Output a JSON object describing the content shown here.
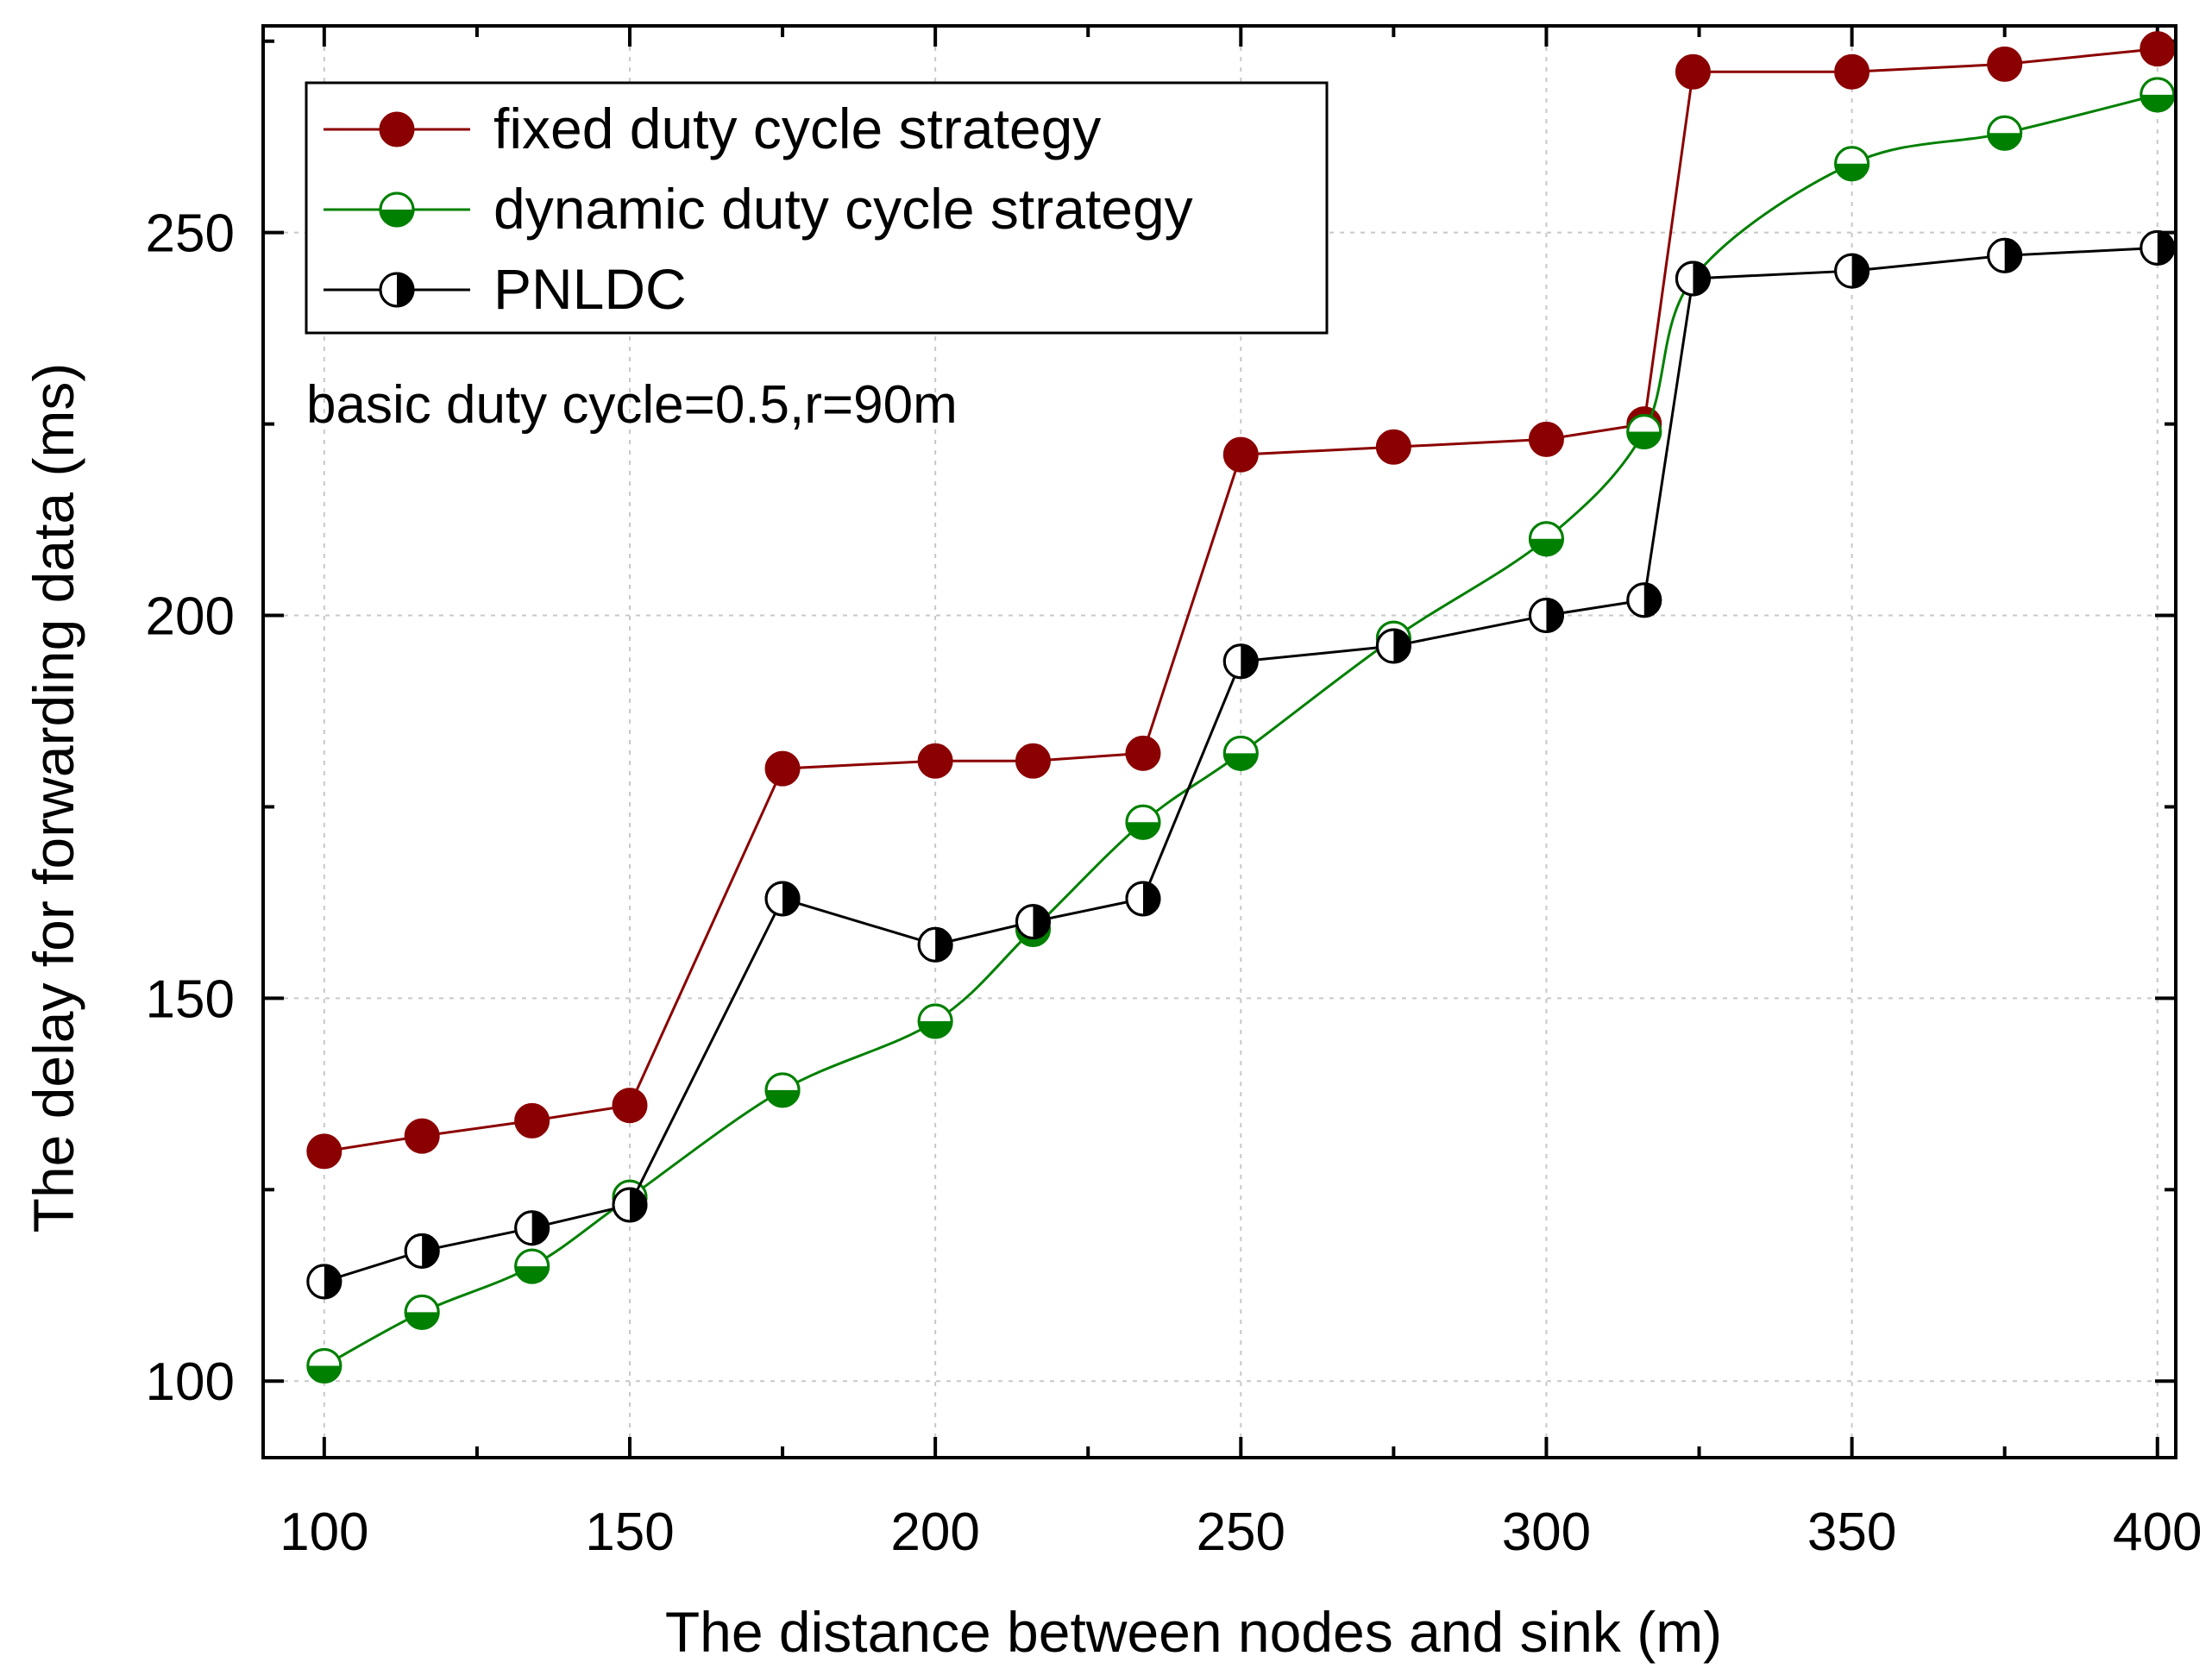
{
  "chart_data": {
    "type": "line",
    "title": "",
    "xlabel": "The distance between nodes and sink (m)",
    "ylabel": "The delay for forwarding data (ms)",
    "annotation": "basic duty cycle=0.5,r=90m",
    "xlim": [
      90,
      403
    ],
    "ylim": [
      90,
      277
    ],
    "xticks": [
      100,
      150,
      200,
      250,
      300,
      350,
      400
    ],
    "yticks": [
      100,
      150,
      200,
      250
    ],
    "xtick_labels": [
      "100",
      "150",
      "200",
      "250",
      "300",
      "350",
      "400"
    ],
    "ytick_labels": [
      "100",
      "150",
      "200",
      "250"
    ],
    "x_minor_ticks": [
      125,
      175,
      225,
      275,
      325,
      375
    ],
    "y_minor_ticks": [
      125,
      175,
      225,
      275
    ],
    "grid": true,
    "legend_position": "top-left",
    "series": [
      {
        "name": "fixed duty cycle strategy",
        "color": "#8B0000",
        "marker": "filled-circle",
        "line": "straight",
        "x": [
          100,
          116,
          134,
          150,
          175,
          200,
          216,
          234,
          250,
          275,
          300,
          316,
          324,
          350,
          375,
          400
        ],
        "y": [
          130,
          132,
          134,
          136,
          180,
          181,
          181,
          182,
          221,
          222,
          223,
          225,
          271,
          271,
          272,
          274
        ]
      },
      {
        "name": "dynamic duty cycle strategy",
        "color": "#008000",
        "marker": "half-filled-circle-bottom",
        "line": "smooth",
        "x": [
          100,
          116,
          134,
          150,
          175,
          200,
          216,
          234,
          250,
          275,
          300,
          316,
          324,
          350,
          375,
          400
        ],
        "y": [
          102,
          109,
          115,
          124,
          138,
          147,
          159,
          173,
          182,
          197,
          210,
          224,
          244,
          259,
          263,
          268
        ]
      },
      {
        "name": "PNLDC",
        "color": "#000000",
        "marker": "half-filled-circle-right",
        "line": "straight",
        "x": [
          100,
          116,
          134,
          150,
          175,
          200,
          216,
          234,
          250,
          275,
          300,
          316,
          324,
          350,
          375,
          400
        ],
        "y": [
          113,
          117,
          120,
          123,
          163,
          157,
          160,
          163,
          194,
          196,
          200,
          202,
          244,
          245,
          247,
          248
        ]
      }
    ]
  }
}
